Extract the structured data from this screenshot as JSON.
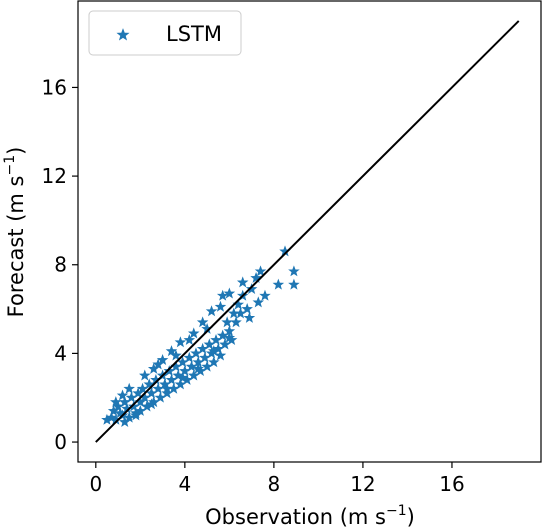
{
  "chart_data": {
    "type": "scatter",
    "xlabel_main": "Observation (m s",
    "xlabel_sup": "−1",
    "xlabel_close": ")",
    "ylabel_main": "Forecast (m s",
    "ylabel_sup": "−1",
    "ylabel_close": ")",
    "xlim": [
      -0.8,
      20.0
    ],
    "ylim": [
      -0.9,
      19.9
    ],
    "xticks": [
      0,
      4,
      8,
      12,
      16
    ],
    "yticks": [
      0,
      4,
      8,
      12,
      16
    ],
    "grid": false,
    "legend_position": "top-left",
    "marker": "star",
    "series": [
      {
        "name": "LSTM",
        "color": "#1f77b4",
        "points": [
          [
            0.5,
            1.0
          ],
          [
            0.7,
            1.1
          ],
          [
            0.8,
            1.4
          ],
          [
            0.9,
            1.0
          ],
          [
            1.0,
            1.6
          ],
          [
            1.1,
            1.3
          ],
          [
            1.2,
            1.2
          ],
          [
            1.3,
            1.8
          ],
          [
            1.4,
            1.5
          ],
          [
            1.5,
            1.1
          ],
          [
            1.6,
            2.0
          ],
          [
            1.7,
            1.6
          ],
          [
            1.8,
            1.3
          ],
          [
            1.9,
            2.2
          ],
          [
            2.0,
            1.8
          ],
          [
            2.0,
            1.4
          ],
          [
            2.1,
            2.4
          ],
          [
            2.2,
            2.0
          ],
          [
            2.3,
            1.6
          ],
          [
            2.4,
            2.6
          ],
          [
            2.5,
            2.2
          ],
          [
            2.6,
            1.8
          ],
          [
            2.7,
            2.8
          ],
          [
            2.8,
            2.4
          ],
          [
            2.9,
            2.0
          ],
          [
            3.0,
            3.0
          ],
          [
            3.1,
            2.6
          ],
          [
            3.2,
            2.2
          ],
          [
            3.3,
            3.2
          ],
          [
            3.4,
            2.8
          ],
          [
            3.5,
            2.4
          ],
          [
            3.6,
            3.4
          ],
          [
            3.7,
            3.0
          ],
          [
            3.8,
            2.6
          ],
          [
            3.9,
            3.6
          ],
          [
            4.0,
            3.2
          ],
          [
            4.1,
            2.8
          ],
          [
            4.2,
            3.8
          ],
          [
            4.3,
            3.4
          ],
          [
            4.4,
            3.0
          ],
          [
            4.5,
            4.0
          ],
          [
            4.6,
            3.6
          ],
          [
            4.7,
            3.2
          ],
          [
            4.8,
            4.2
          ],
          [
            4.9,
            3.8
          ],
          [
            5.0,
            3.4
          ],
          [
            5.1,
            4.4
          ],
          [
            5.2,
            4.0
          ],
          [
            5.3,
            3.6
          ],
          [
            5.4,
            4.6
          ],
          [
            5.5,
            4.2
          ],
          [
            5.6,
            3.9
          ],
          [
            5.7,
            4.8
          ],
          [
            5.8,
            4.4
          ],
          [
            5.9,
            5.4
          ],
          [
            6.0,
            5.0
          ],
          [
            6.1,
            4.6
          ],
          [
            6.2,
            5.8
          ],
          [
            6.3,
            5.4
          ],
          [
            6.4,
            6.2
          ],
          [
            6.5,
            5.8
          ],
          [
            6.6,
            6.6
          ],
          [
            6.8,
            6.0
          ],
          [
            7.0,
            6.9
          ],
          [
            7.2,
            7.4
          ],
          [
            7.4,
            7.7
          ],
          [
            7.6,
            6.6
          ],
          [
            8.2,
            7.1
          ],
          [
            8.5,
            8.6
          ],
          [
            8.9,
            7.7
          ],
          [
            8.9,
            7.1
          ],
          [
            4.8,
            5.4
          ],
          [
            5.2,
            5.9
          ],
          [
            5.6,
            6.1
          ],
          [
            6.0,
            6.7
          ],
          [
            3.0,
            3.7
          ],
          [
            3.4,
            4.1
          ],
          [
            3.8,
            4.5
          ],
          [
            2.2,
            3.0
          ],
          [
            2.6,
            3.3
          ],
          [
            1.5,
            2.4
          ],
          [
            1.2,
            2.1
          ],
          [
            0.9,
            1.8
          ],
          [
            4.4,
            4.9
          ],
          [
            5.7,
            6.6
          ],
          [
            6.6,
            7.2
          ],
          [
            7.3,
            6.3
          ],
          [
            6.9,
            5.6
          ],
          [
            6.0,
            4.7
          ],
          [
            5.3,
            4.1
          ],
          [
            4.6,
            3.3
          ],
          [
            3.9,
            2.9
          ],
          [
            3.2,
            2.4
          ],
          [
            2.5,
            1.7
          ],
          [
            1.8,
            1.2
          ],
          [
            1.3,
            0.9
          ],
          [
            2.8,
            3.5
          ],
          [
            3.6,
            3.9
          ],
          [
            4.2,
            4.6
          ],
          [
            5.0,
            5.1
          ]
        ]
      }
    ],
    "reference_line": [
      [
        0,
        0
      ],
      [
        19,
        19
      ]
    ]
  }
}
